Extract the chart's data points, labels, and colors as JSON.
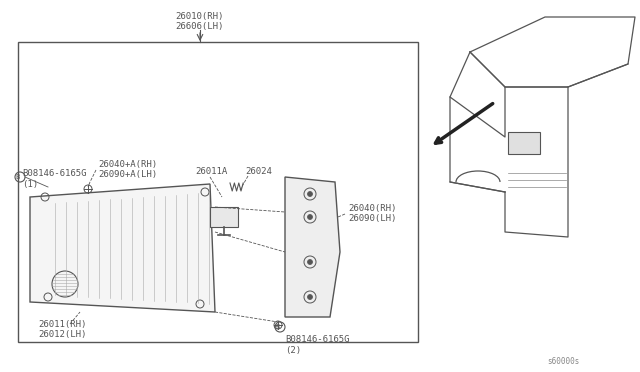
{
  "bg_color": "#ffffff",
  "line_color": "#555555",
  "text_color": "#555555",
  "parts": {
    "top_label1": "26010(RH)",
    "top_label2": "26606(LH)",
    "label_26040_rh": "26040+A(RH)",
    "label_26090_lh": "26090+A(LH)",
    "label_26024": "26024",
    "label_26011a": "26011A",
    "label_b1": "B08146-6165G",
    "label_b1b": "(1)",
    "label_26040rh": "26040(RH)",
    "label_26090lh": "26090(LH)",
    "label_26011rh": "26011(RH)",
    "label_26012lh": "26012(LH)",
    "label_b2": "B08146-6165G",
    "label_b2b": "(2)",
    "watermark": "s60000s"
  },
  "figsize": [
    6.4,
    3.72
  ],
  "dpi": 100
}
